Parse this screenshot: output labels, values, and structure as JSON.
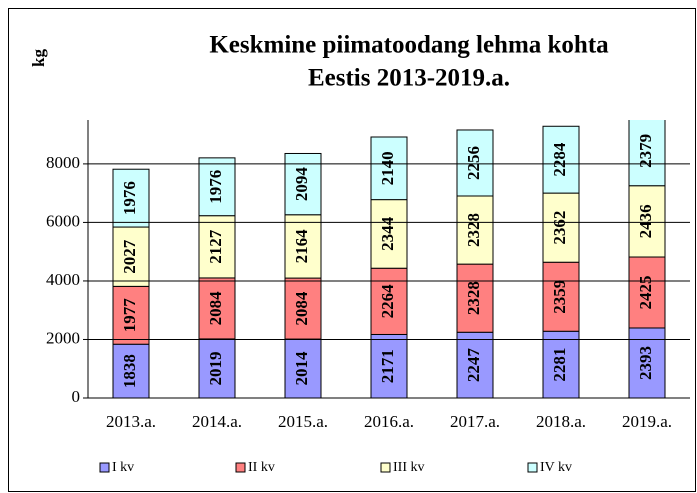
{
  "chart_data": {
    "type": "stacked_bar",
    "title": [
      "Keskmine piimatoodang  lehma kohta",
      "Eestis 2013-2019.a."
    ],
    "y_label": "kg",
    "categories": [
      "2013.a.",
      "2014.a.",
      "2015.a.",
      "2016.a.",
      "2017.a.",
      "2018.a.",
      "2019.a."
    ],
    "series": [
      {
        "name": "I kv",
        "color": "#9999ff",
        "values": [
          1838,
          2019,
          2014,
          2171,
          2247,
          2281,
          2393
        ]
      },
      {
        "name": "II kv",
        "color": "#ff8080",
        "values": [
          1977,
          2084,
          2084,
          2264,
          2328,
          2359,
          2425
        ]
      },
      {
        "name": "III kv",
        "color": "#ffffcc",
        "values": [
          2027,
          2127,
          2164,
          2344,
          2328,
          2362,
          2436
        ]
      },
      {
        "name": "IV kv",
        "color": "#ccffff",
        "values": [
          1976,
          1976,
          2094,
          2140,
          2256,
          2284,
          2379
        ]
      }
    ],
    "ylim": [
      0,
      9500
    ],
    "yticks": [
      0,
      2000,
      4000,
      6000,
      8000
    ],
    "grid": true,
    "legend": "bottom"
  }
}
